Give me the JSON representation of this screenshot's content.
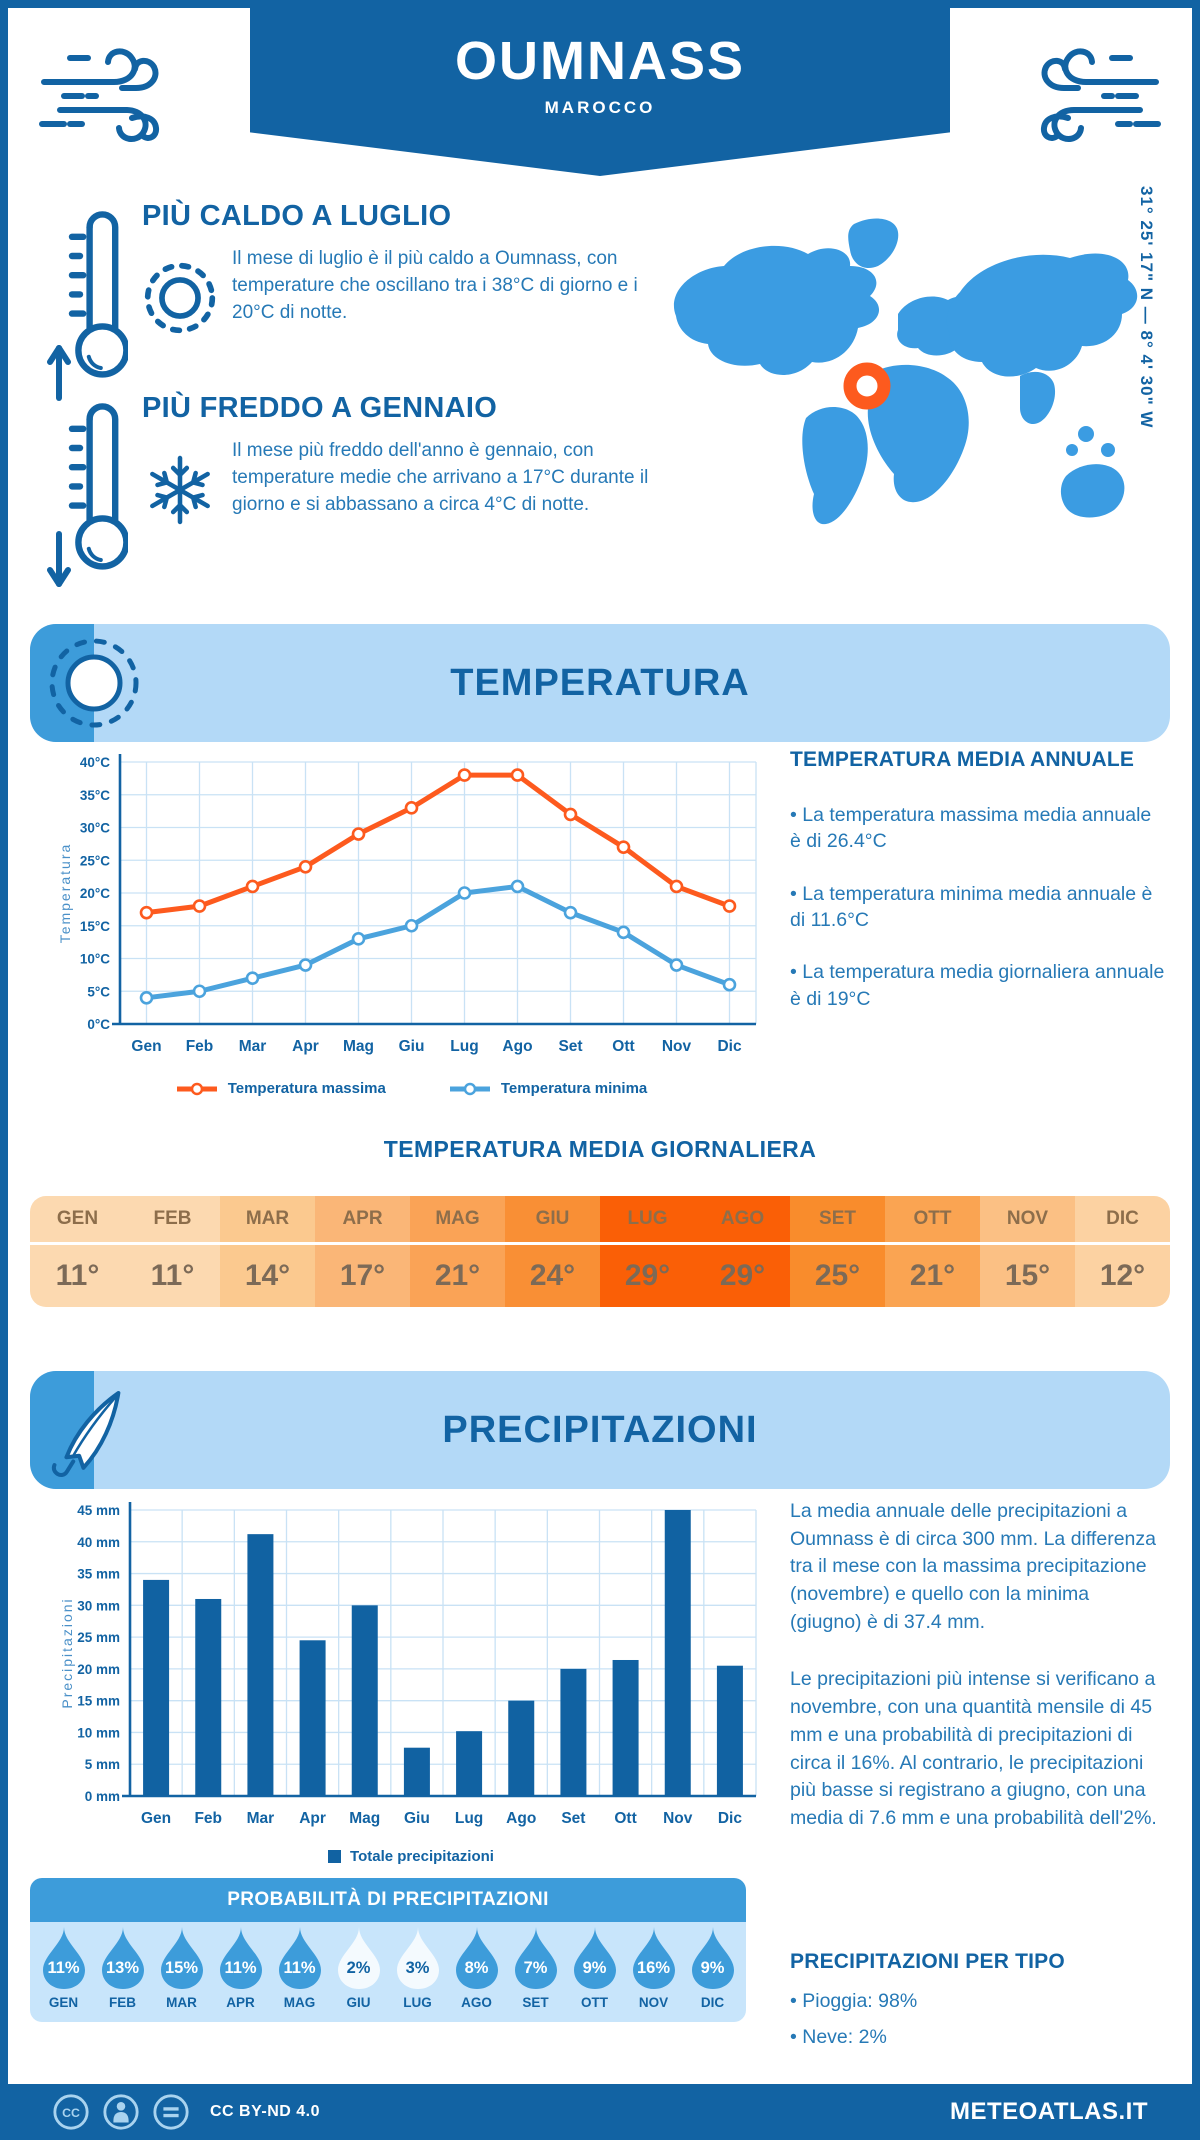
{
  "header": {
    "title": "OUMNASS",
    "subtitle": "MAROCCO"
  },
  "coordinates": "31° 25' 17\" N — 8° 4' 30\" W",
  "highlights": {
    "hot": {
      "title": "PIÙ CALDO A LUGLIO",
      "text": "Il mese di luglio è il più caldo a Oumnass, con temperature che oscillano tra i 38°C di giorno e i 20°C di notte."
    },
    "cold": {
      "title": "PIÙ FREDDO A GENNAIO",
      "text": "Il mese più freddo dell'anno è gennaio, con temperature medie che arrivano a 17°C durante il giorno e si abbassano a circa 4°C di notte."
    }
  },
  "temperature_section": {
    "banner_title": "TEMPERATURA",
    "annual_heading": "TEMPERATURA MEDIA ANNUALE",
    "annual_bullets": [
      "• La temperatura massima media annuale è di 26.4°C",
      "• La temperatura minima media annuale è di 11.6°C",
      "• La temperatura media giornaliera annuale è di 19°C"
    ],
    "daily_heading": "TEMPERATURA MEDIA GIORNALIERA"
  },
  "chart_data": [
    {
      "type": "line",
      "categories": [
        "Gen",
        "Feb",
        "Mar",
        "Apr",
        "Mag",
        "Giu",
        "Lug",
        "Ago",
        "Set",
        "Ott",
        "Nov",
        "Dic"
      ],
      "series": [
        {
          "name": "Temperatura massima",
          "values": [
            17,
            18,
            21,
            24,
            29,
            33,
            38,
            38,
            32,
            27,
            21,
            18
          ],
          "color": "#fd5a1e"
        },
        {
          "name": "Temperatura minima",
          "values": [
            4,
            5,
            7,
            9,
            13,
            15,
            20,
            21,
            17,
            14,
            9,
            6
          ],
          "color": "#4ba3dd"
        }
      ],
      "title": "",
      "xlabel": "",
      "ylabel": "Temperatura",
      "ylim": [
        0,
        40
      ],
      "ytick_step": 5,
      "ytick_suffix": "°C",
      "grid": true,
      "legend_position": "bottom"
    },
    {
      "type": "bar",
      "categories": [
        "Gen",
        "Feb",
        "Mar",
        "Apr",
        "Mag",
        "Giu",
        "Lug",
        "Ago",
        "Set",
        "Ott",
        "Nov",
        "Dic"
      ],
      "values": [
        34,
        31,
        41.2,
        24.5,
        30,
        7.6,
        10.2,
        15,
        20,
        21.4,
        45,
        20.5
      ],
      "title": "",
      "xlabel": "",
      "ylabel": "Precipitazioni",
      "ylim": [
        0,
        45
      ],
      "ytick_step": 5,
      "ytick_suffix": " mm",
      "grid": true,
      "legend": "Totale precipitazioni",
      "color": "#1162a2"
    }
  ],
  "monthly_table": {
    "months": [
      "GEN",
      "FEB",
      "MAR",
      "APR",
      "MAG",
      "GIU",
      "LUG",
      "AGO",
      "SET",
      "OTT",
      "NOV",
      "DIC"
    ],
    "values": [
      "11°",
      "11°",
      "14°",
      "17°",
      "21°",
      "24°",
      "29°",
      "29°",
      "25°",
      "21°",
      "15°",
      "12°"
    ],
    "cell_colors": [
      "#fcd9b0",
      "#fcd9b0",
      "#fbc98f",
      "#fab677",
      "#faa356",
      "#f98f35",
      "#fa5f06",
      "#fa5f06",
      "#f98c2c",
      "#faa452",
      "#fbc084",
      "#fcd2a2"
    ],
    "month_text_color": "#8d6e4b",
    "value_text_color": "#7c6a57"
  },
  "precipitation_section": {
    "banner_title": "PRECIPITAZIONI",
    "paragraphs": [
      "La media annuale delle precipitazioni a Oumnass è di circa 300 mm. La differenza tra il mese con la massima precipitazione (novembre) e quello con la minima (giugno) è di 37.4 mm.",
      "Le precipitazioni più intense si verificano a novembre, con una quantità mensile di 45 mm e una probabilità di precipitazioni di circa il 16%. Al contrario, le precipitazioni più basse si registrano a giugno, con una media di 7.6 mm e una probabilità dell'2%."
    ],
    "probability": {
      "title": "PROBABILITÀ DI PRECIPITAZIONI",
      "months": [
        "GEN",
        "FEB",
        "MAR",
        "APR",
        "MAG",
        "GIU",
        "LUG",
        "AGO",
        "SET",
        "OTT",
        "NOV",
        "DIC"
      ],
      "values": [
        "11%",
        "13%",
        "15%",
        "11%",
        "11%",
        "2%",
        "3%",
        "8%",
        "7%",
        "9%",
        "16%",
        "9%"
      ],
      "white_drop_indices": [
        5,
        6
      ],
      "drop_color": "#3d9cda",
      "white_drop_color": "#f4fafe"
    },
    "per_tipo": {
      "heading": "PRECIPITAZIONI PER TIPO",
      "bullets": [
        "• Pioggia: 98%",
        "• Neve: 2%"
      ]
    }
  },
  "footer": {
    "license": "CC BY-ND 4.0",
    "site": "METEOATLAS.IT"
  },
  "colors": {
    "primary_dark": "#1263a3",
    "body_text": "#2679b6",
    "banner_light": "#b3d9f7",
    "accent_medium": "#3d9cda",
    "gridline": "#c9e2f5",
    "orange": "#fd5a1e",
    "line_min_blue": "#4ba3dd",
    "bar_blue": "#1162a2",
    "map_blue": "#3b9ce2",
    "marker_orange": "#fd5a1e",
    "drop_panel": "#c8e5fb",
    "footer_icon": "#a9d3ef"
  }
}
